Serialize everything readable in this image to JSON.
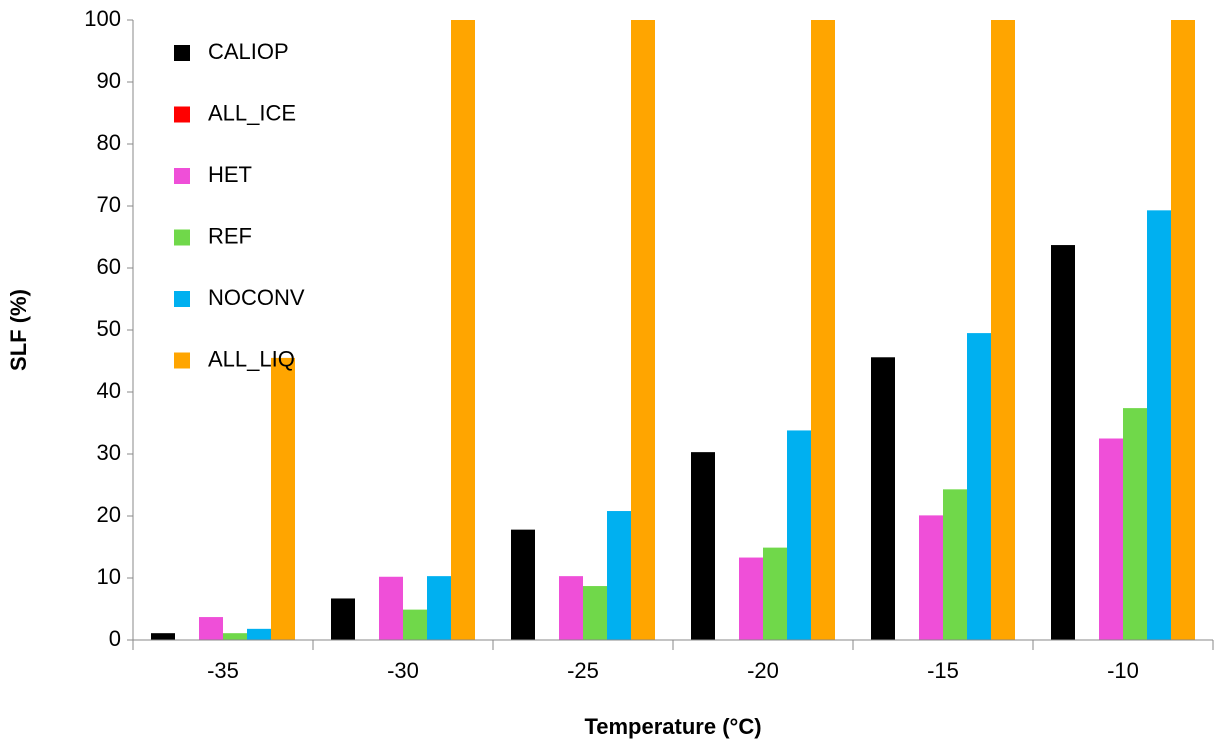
{
  "chart_data": {
    "type": "bar",
    "x_label": "Temperature (°C)",
    "y_label": "SLF (%)",
    "categories": [
      "-35",
      "-30",
      "-25",
      "-20",
      "-15",
      "-10"
    ],
    "series": [
      {
        "name": "CALIOP",
        "color": "#000000",
        "values": [
          1.1,
          6.7,
          17.8,
          30.3,
          45.6,
          63.7
        ]
      },
      {
        "name": "ALL_ICE",
        "color": "#ff0000",
        "values": [
          0,
          0,
          0,
          0,
          0,
          0
        ]
      },
      {
        "name": "HET",
        "color": "#ef4fd8",
        "values": [
          3.7,
          10.2,
          10.3,
          13.3,
          20.1,
          32.5
        ]
      },
      {
        "name": "REF",
        "color": "#70d84a",
        "values": [
          1.1,
          4.9,
          8.7,
          14.9,
          24.3,
          37.4
        ]
      },
      {
        "name": "NOCONV",
        "color": "#00b0f0",
        "values": [
          1.8,
          10.3,
          20.8,
          33.8,
          49.5,
          69.3
        ]
      },
      {
        "name": "ALL_LIQ",
        "color": "#ffa500",
        "values": [
          45.5,
          100,
          100,
          100,
          100,
          100
        ]
      }
    ],
    "ylim": [
      0,
      100
    ],
    "yticks": [
      0,
      10,
      20,
      30,
      40,
      50,
      60,
      70,
      80,
      90,
      100
    ],
    "grid": false,
    "legend": "upper-left"
  }
}
